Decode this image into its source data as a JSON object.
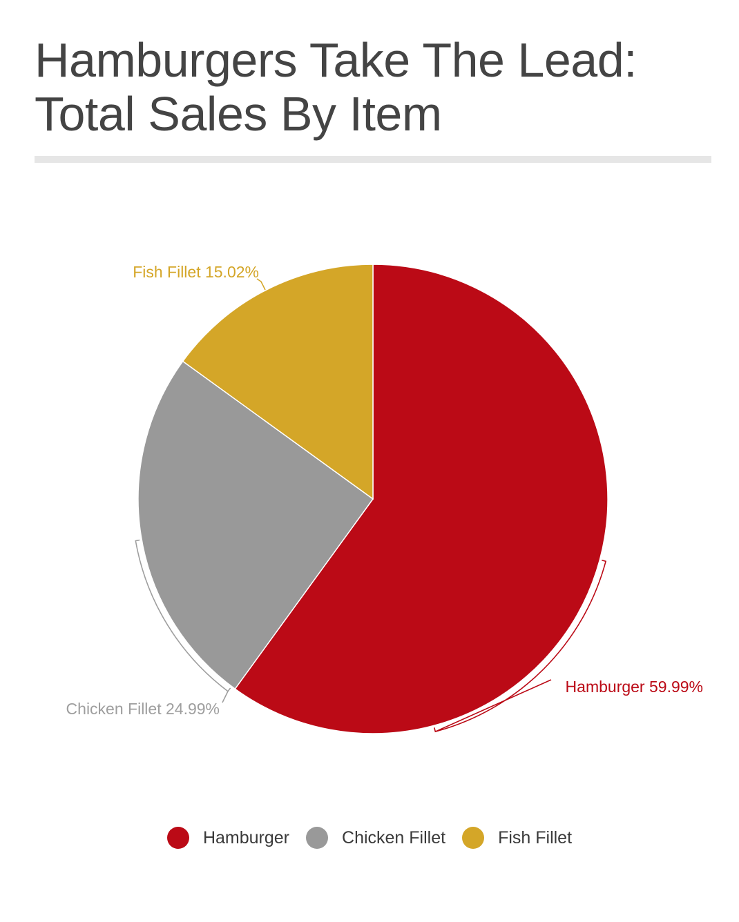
{
  "title_line1": "Hamburgers Take The Lead:",
  "title_line2": "Total Sales By Item",
  "chart_data": {
    "type": "pie",
    "categories": [
      "Hamburger",
      "Chicken Fillet",
      "Fish Fillet"
    ],
    "values": [
      59.99,
      24.99,
      15.02
    ],
    "labels": [
      "Hamburger 59.99%",
      "Chicken Fillet 24.99%",
      "Fish Fillet 15.02%"
    ],
    "colors": [
      "#bb0a16",
      "#999999",
      "#d4a628"
    ],
    "label_colors": [
      "#bb0a16",
      "#9e9e9e",
      "#d4a628"
    ],
    "start": "12 o'clock",
    "direction": "clockwise",
    "legend_position": "bottom"
  }
}
